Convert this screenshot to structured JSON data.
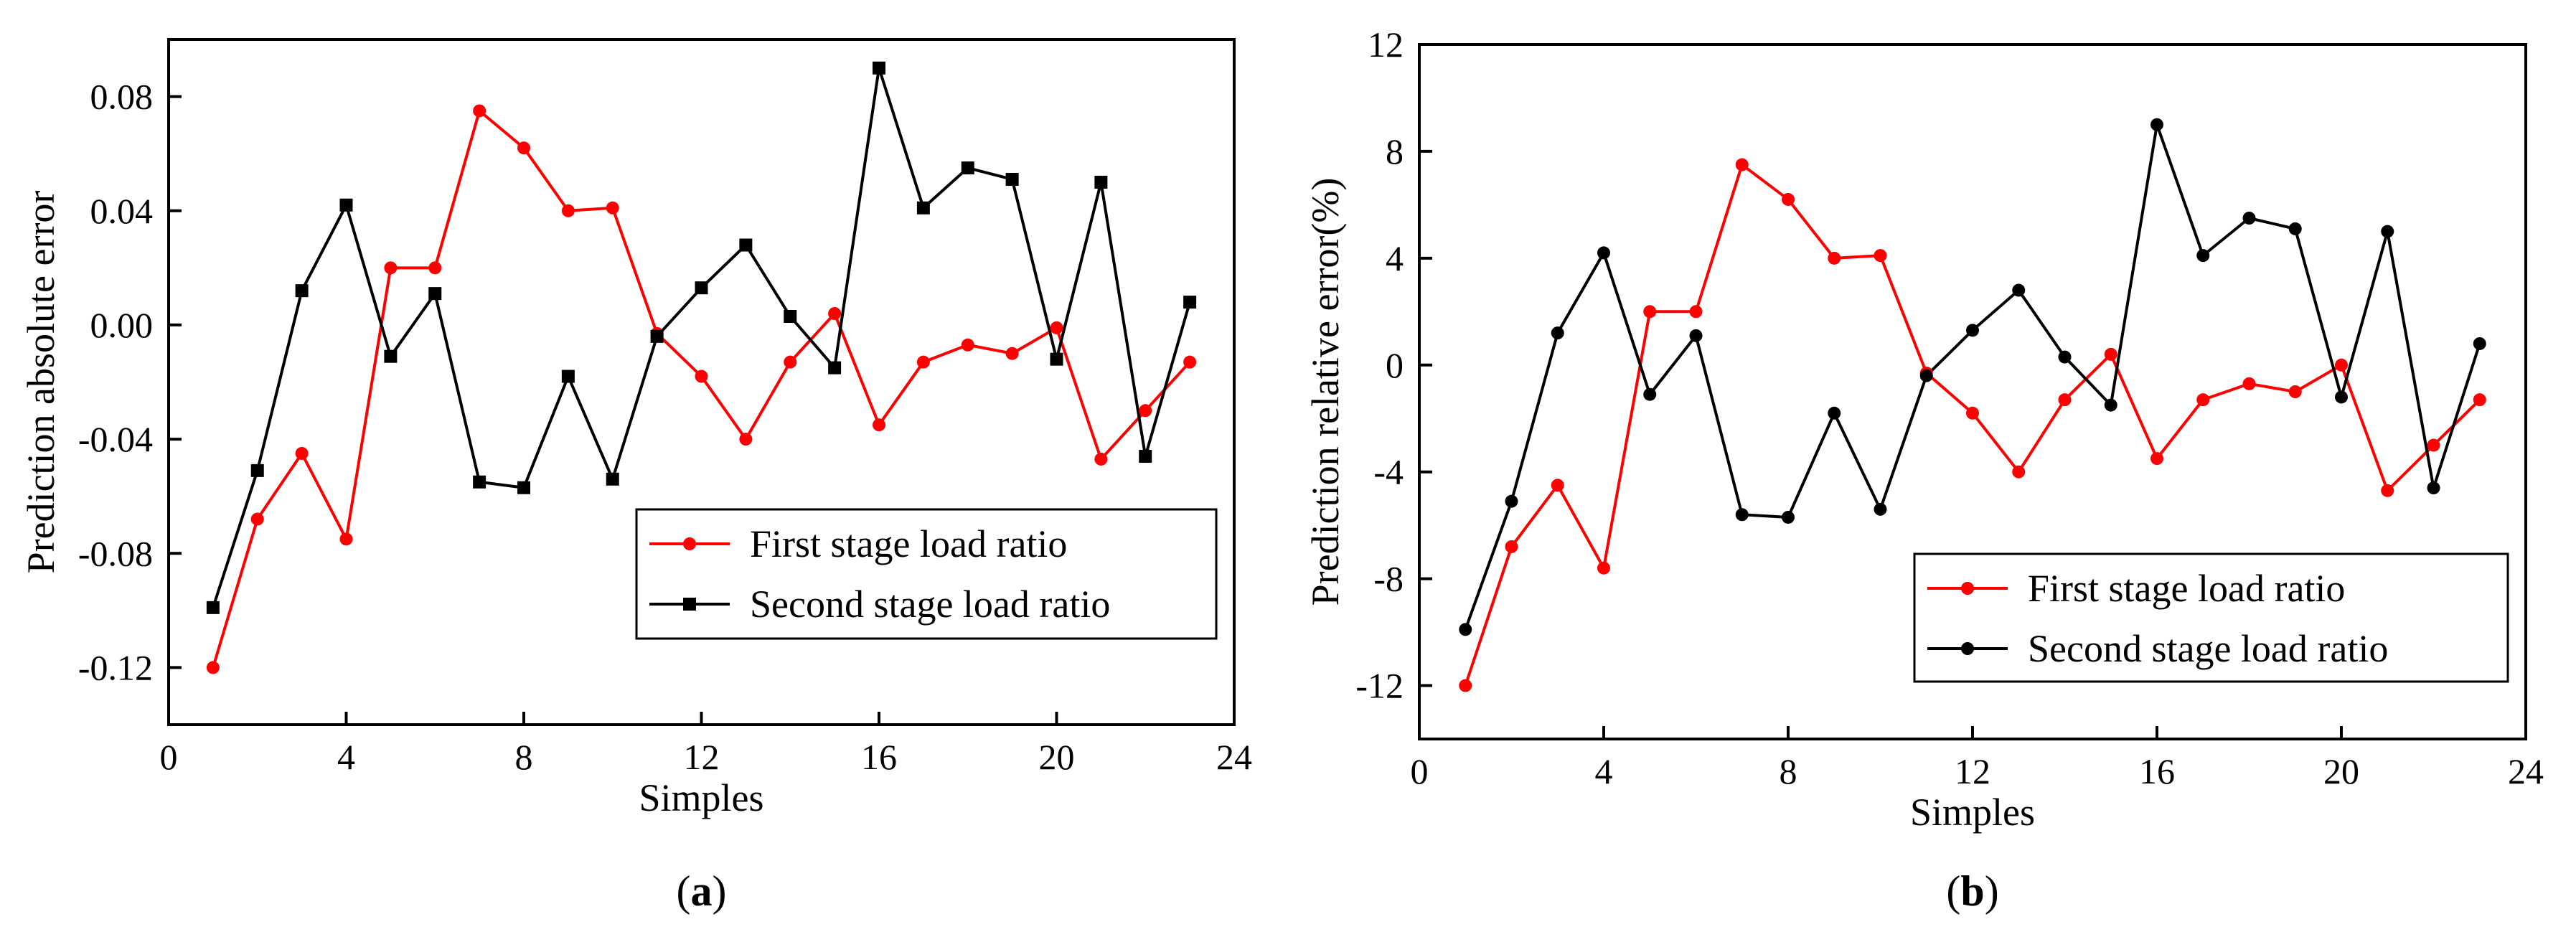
{
  "chart_data": [
    {
      "type": "line",
      "caption_letter": "a",
      "caption_open": "(",
      "caption_close": ")",
      "xlabel": "Simples",
      "ylabel": "Prediction absolute error",
      "xlim": [
        0,
        24
      ],
      "ylim": [
        -0.14,
        0.1
      ],
      "xticks": [
        0,
        4,
        8,
        12,
        16,
        20,
        24
      ],
      "xtick_labels": [
        "0",
        "4",
        "8",
        "12",
        "16",
        "20",
        "24"
      ],
      "yticks": [
        -0.12,
        -0.08,
        -0.04,
        0.0,
        0.04,
        0.08
      ],
      "ytick_labels": [
        "-0.12",
        "-0.08",
        "-0.04",
        "0.00",
        "0.04",
        "0.08"
      ],
      "legend_position": "bottom-right",
      "x": [
        1,
        2,
        3,
        4,
        5,
        6,
        7,
        8,
        9,
        10,
        11,
        12,
        13,
        14,
        15,
        16,
        17,
        18,
        19,
        20,
        21,
        22,
        23
      ],
      "series": [
        {
          "name": "First stage load ratio",
          "color": "#ff0000",
          "marker": "circle",
          "values": [
            -0.12,
            -0.068,
            -0.045,
            -0.075,
            0.02,
            0.02,
            0.075,
            0.062,
            0.04,
            0.041,
            -0.003,
            -0.018,
            -0.04,
            -0.013,
            0.004,
            -0.035,
            -0.013,
            -0.007,
            -0.01,
            -0.001,
            -0.047,
            -0.03,
            -0.013
          ]
        },
        {
          "name": "Second stage load ratio",
          "color": "#000000",
          "marker": "square",
          "values": [
            -0.099,
            -0.051,
            0.012,
            0.042,
            -0.011,
            0.011,
            -0.055,
            -0.057,
            -0.018,
            -0.054,
            -0.004,
            0.013,
            0.028,
            0.003,
            -0.015,
            0.09,
            0.041,
            0.055,
            0.051,
            -0.012,
            0.05,
            -0.046,
            0.008
          ]
        }
      ]
    },
    {
      "type": "line",
      "caption_letter": "b",
      "caption_open": "(",
      "caption_close": ")",
      "xlabel": "Simples",
      "ylabel": "Prediction relative error(%)",
      "xlim": [
        0,
        24
      ],
      "ylim": [
        -14,
        12
      ],
      "xticks": [
        0,
        4,
        8,
        12,
        16,
        20,
        24
      ],
      "xtick_labels": [
        "0",
        "4",
        "8",
        "12",
        "16",
        "20",
        "24"
      ],
      "yticks": [
        -12,
        -8,
        -4,
        0,
        4,
        8,
        12
      ],
      "ytick_labels": [
        "-12",
        "-8",
        "-4",
        "0",
        "4",
        "8",
        "12"
      ],
      "legend_position": "bottom-right",
      "x": [
        1,
        2,
        3,
        4,
        5,
        6,
        7,
        8,
        9,
        10,
        11,
        12,
        13,
        14,
        15,
        16,
        17,
        18,
        19,
        20,
        21,
        22,
        23
      ],
      "series": [
        {
          "name": "First stage load ratio",
          "color": "#ff0000",
          "marker": "circle",
          "values": [
            -12,
            -6.8,
            -4.5,
            -7.6,
            2,
            2,
            7.5,
            6.2,
            4,
            4.1,
            -0.3,
            -1.8,
            -4,
            -1.3,
            0.4,
            -3.5,
            -1.3,
            -0.7,
            -1,
            0,
            -4.7,
            -3,
            -1.3
          ]
        },
        {
          "name": "Second stage load ratio",
          "color": "#000000",
          "marker": "circle",
          "values": [
            -9.9,
            -5.1,
            1.2,
            4.2,
            -1.1,
            1.1,
            -5.6,
            -5.7,
            -1.8,
            -5.4,
            -0.4,
            1.3,
            2.8,
            0.3,
            -1.5,
            9,
            4.1,
            5.5,
            5.1,
            -1.2,
            5,
            -4.6,
            0.8
          ]
        }
      ]
    }
  ]
}
